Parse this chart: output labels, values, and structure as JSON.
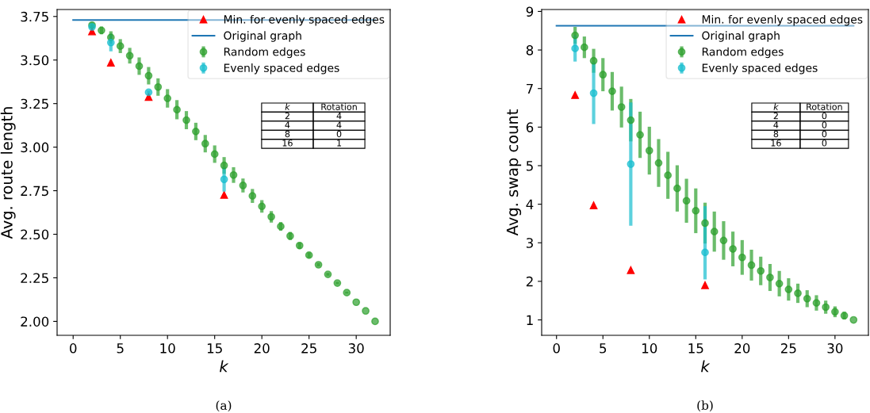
{
  "chart_data": [
    {
      "type": "scatter",
      "xlabel": "k",
      "ylabel": "Avg. route length",
      "xlim": [
        -1.7,
        33.6
      ],
      "ylim": [
        1.92,
        3.79
      ],
      "xticks": [
        0,
        5,
        10,
        15,
        20,
        25,
        30
      ],
      "yticks": [
        {
          "value": 2.0,
          "label": "2.00"
        },
        {
          "value": 2.25,
          "label": "2.25"
        },
        {
          "value": 2.5,
          "label": "2.50"
        },
        {
          "value": 2.75,
          "label": "2.75"
        },
        {
          "value": 3.0,
          "label": "3.00"
        },
        {
          "value": 3.25,
          "label": "3.25"
        },
        {
          "value": 3.5,
          "label": "3.50"
        },
        {
          "value": 3.75,
          "label": "3.75"
        }
      ],
      "legend": "top right",
      "grid": false,
      "annotations": [
        "(a)",
        "k",
        "Rotation",
        "2",
        "4",
        "4",
        "4",
        "8",
        "0",
        "16",
        "1"
      ],
      "series": [
        {
          "name": "Min. for evenly spaced edges",
          "marker": "triangle",
          "color": "#ff0000",
          "x": [
            2,
            4,
            8,
            16
          ],
          "values": [
            3.664,
            3.485,
            3.288,
            2.726
          ]
        },
        {
          "name": "Original graph",
          "type": "line",
          "marker": "none",
          "color": "#1f77b4",
          "x": [
            0,
            32
          ],
          "values": [
            3.73,
            3.73
          ]
        },
        {
          "name": "Random edges",
          "marker": "circle",
          "color": "#2ca02c",
          "x": [
            2,
            3,
            4,
            5,
            6,
            7,
            8,
            9,
            10,
            11,
            12,
            13,
            14,
            15,
            16,
            17,
            18,
            19,
            20,
            21,
            22,
            23,
            24,
            25,
            26,
            27,
            28,
            29,
            30,
            31,
            32
          ],
          "values": [
            3.7,
            3.67,
            3.63,
            3.58,
            3.525,
            3.465,
            3.41,
            3.345,
            3.28,
            3.215,
            3.155,
            3.09,
            3.02,
            2.96,
            2.895,
            2.84,
            2.78,
            2.72,
            2.66,
            2.6,
            2.545,
            2.49,
            2.435,
            2.38,
            2.325,
            2.27,
            2.22,
            2.165,
            2.11,
            2.06,
            2.0
          ],
          "errors": [
            0.015,
            0.022,
            0.035,
            0.04,
            0.045,
            0.05,
            0.05,
            0.05,
            0.053,
            0.055,
            0.052,
            0.05,
            0.05,
            0.05,
            0.048,
            0.045,
            0.04,
            0.04,
            0.036,
            0.033,
            0.025,
            0.023,
            0.019,
            0.015,
            0.01,
            0.008,
            0.007,
            0.006,
            null,
            null,
            null
          ]
        },
        {
          "name": "Evenly spaced edges",
          "marker": "circle",
          "color": "#17becf",
          "x": [
            2,
            4,
            8,
            16
          ],
          "values": [
            3.69,
            3.6,
            3.315,
            2.815
          ],
          "errors": [
            0.01,
            0.05,
            0.01,
            0.07
          ]
        }
      ]
    },
    {
      "type": "scatter",
      "xlabel": "k",
      "ylabel": "Avg. swap count",
      "xlim": [
        -1.6,
        33.6
      ],
      "ylim": [
        0.6,
        9.05
      ],
      "xticks": [
        0,
        5,
        10,
        15,
        20,
        25,
        30
      ],
      "yticks": [
        1,
        2,
        3,
        4,
        5,
        6,
        7,
        8,
        9
      ],
      "legend": "top right",
      "grid": false,
      "annotations": [
        "(b)",
        "k",
        "Rotation",
        "2",
        "0",
        "4",
        "0",
        "8",
        "0",
        "16",
        "0"
      ],
      "series": [
        {
          "name": "Min. for evenly spaced edges",
          "marker": "triangle",
          "color": "#ff0000",
          "x": [
            2,
            4,
            8,
            16
          ],
          "values": [
            6.83,
            3.97,
            2.29,
            1.9
          ]
        },
        {
          "name": "Original graph",
          "type": "line",
          "marker": "none",
          "color": "#1f77b4",
          "x": [
            0,
            32
          ],
          "values": [
            8.63,
            8.63
          ]
        },
        {
          "name": "Random edges",
          "marker": "circle",
          "color": "#2ca02c",
          "x": [
            2,
            3,
            4,
            5,
            6,
            7,
            8,
            9,
            10,
            11,
            12,
            13,
            14,
            15,
            16,
            17,
            18,
            19,
            20,
            21,
            22,
            23,
            24,
            25,
            26,
            27,
            28,
            29,
            30,
            31,
            32
          ],
          "values": [
            8.38,
            8.07,
            7.72,
            7.36,
            6.93,
            6.52,
            6.18,
            5.8,
            5.39,
            5.07,
            4.75,
            4.41,
            4.09,
            3.83,
            3.51,
            3.29,
            3.06,
            2.84,
            2.62,
            2.42,
            2.27,
            2.1,
            1.94,
            1.79,
            1.69,
            1.55,
            1.44,
            1.33,
            1.21,
            1.11,
            1.0
          ],
          "errors": [
            0.22,
            0.28,
            0.31,
            0.43,
            0.5,
            0.53,
            0.55,
            0.6,
            0.62,
            0.62,
            0.61,
            0.6,
            0.57,
            0.58,
            0.53,
            0.52,
            0.5,
            0.45,
            0.45,
            0.4,
            0.37,
            0.35,
            0.33,
            0.29,
            0.25,
            0.22,
            0.2,
            0.17,
            0.14,
            0.1,
            null
          ]
        },
        {
          "name": "Evenly spaced edges",
          "marker": "circle",
          "color": "#17becf",
          "x": [
            2,
            4,
            8,
            16
          ],
          "values": [
            8.04,
            6.88,
            5.04,
            2.75
          ],
          "errors": [
            0.34,
            0.8,
            1.6,
            [
              2.05,
              3.95
            ]
          ]
        }
      ]
    }
  ]
}
